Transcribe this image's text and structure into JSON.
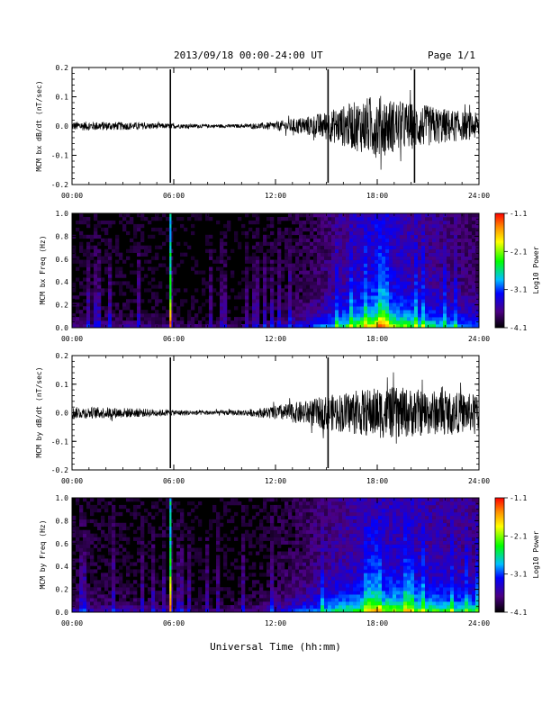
{
  "header": {
    "title": "2013/09/18  00:00-24:00 UT",
    "page": "Page 1/1"
  },
  "footer": {
    "xlabel": "Universal Time (hh:mm)"
  },
  "colorbar": {
    "label": "Log10 Power",
    "ticks": [
      "-1.1",
      "-2.1",
      "-3.1",
      "-4.1"
    ],
    "range": [
      -4.1,
      -1.1
    ],
    "colors": [
      "#000000",
      "#4b0082",
      "#0000ff",
      "#00bfff",
      "#00ff00",
      "#ffff00",
      "#ff8c00",
      "#ff0000"
    ]
  },
  "chart_data": [
    {
      "type": "line",
      "panel": "bx-time-series",
      "ylabel": "MCM bx dB/dt (nT/sec)",
      "xlim": [
        0,
        24
      ],
      "ylim": [
        -0.2,
        0.2
      ],
      "x_ticks": [
        "00:00",
        "06:00",
        "12:00",
        "18:00",
        "24:00"
      ],
      "y_ticks": [
        "0.2",
        "0.1",
        "0.0",
        "-0.1",
        "-0.2"
      ],
      "series": [
        {
          "envelope_hours": [
            0,
            2,
            4,
            6,
            8,
            10,
            11,
            12,
            13,
            14,
            15,
            16,
            17,
            18,
            19,
            20,
            21,
            22,
            23,
            24
          ],
          "envelope_amplitude": [
            0.015,
            0.015,
            0.012,
            0.008,
            0.006,
            0.006,
            0.01,
            0.015,
            0.025,
            0.035,
            0.05,
            0.07,
            0.09,
            0.11,
            0.09,
            0.08,
            0.07,
            0.06,
            0.05,
            0.045
          ],
          "spikes_hours": [
            5.8,
            15.1,
            20.2
          ]
        }
      ]
    },
    {
      "type": "heatmap",
      "panel": "bx-spectrogram",
      "ylabel": "MCM bx Freq (Hz)",
      "xlim": [
        0,
        24
      ],
      "ylim": [
        0.0,
        1.0
      ],
      "x_ticks": [
        "00:00",
        "06:00",
        "12:00",
        "18:00",
        "24:00"
      ],
      "y_ticks": [
        "1.0",
        "0.8",
        "0.6",
        "0.4",
        "0.2",
        "0.0"
      ],
      "zlim": [
        -4.1,
        -1.1
      ],
      "broadband_hour": 5.8
    },
    {
      "type": "line",
      "panel": "by-time-series",
      "ylabel": "MCM by dB/dt (nT/sec)",
      "xlim": [
        0,
        24
      ],
      "ylim": [
        -0.2,
        0.2
      ],
      "x_ticks": [
        "00:00",
        "06:00",
        "12:00",
        "18:00",
        "24:00"
      ],
      "y_ticks": [
        "0.2",
        "0.1",
        "0.0",
        "-0.1",
        "-0.2"
      ],
      "series": [
        {
          "envelope_hours": [
            0,
            2,
            4,
            6,
            8,
            10,
            11,
            12,
            13,
            14,
            15,
            16,
            17,
            18,
            19,
            20,
            21,
            22,
            23,
            24
          ],
          "envelope_amplitude": [
            0.02,
            0.02,
            0.015,
            0.01,
            0.008,
            0.01,
            0.015,
            0.025,
            0.035,
            0.045,
            0.06,
            0.07,
            0.08,
            0.09,
            0.09,
            0.085,
            0.08,
            0.075,
            0.07,
            0.065
          ],
          "spikes_hours": [
            5.8,
            15.1
          ]
        }
      ]
    },
    {
      "type": "heatmap",
      "panel": "by-spectrogram",
      "ylabel": "MCM by Freq (Hz)",
      "xlim": [
        0,
        24
      ],
      "ylim": [
        0.0,
        1.0
      ],
      "x_ticks": [
        "00:00",
        "06:00",
        "12:00",
        "18:00",
        "24:00"
      ],
      "y_ticks": [
        "1.0",
        "0.8",
        "0.6",
        "0.4",
        "0.2",
        "0.0"
      ],
      "zlim": [
        -4.1,
        -1.1
      ],
      "broadband_hour": 5.8
    }
  ]
}
